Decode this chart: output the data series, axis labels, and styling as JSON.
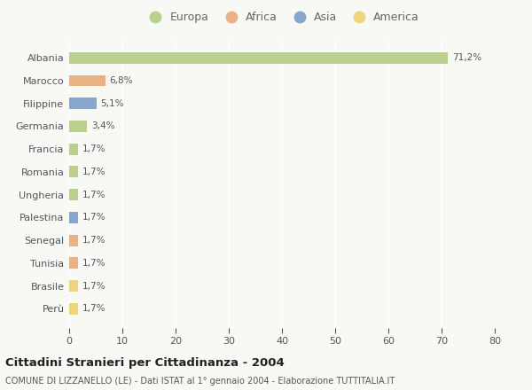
{
  "countries": [
    "Albania",
    "Marocco",
    "Filippine",
    "Germania",
    "Francia",
    "Romania",
    "Ungheria",
    "Palestina",
    "Senegal",
    "Tunisia",
    "Brasile",
    "Perù"
  ],
  "values": [
    71.2,
    6.8,
    5.1,
    3.4,
    1.7,
    1.7,
    1.7,
    1.7,
    1.7,
    1.7,
    1.7,
    1.7
  ],
  "labels": [
    "71,2%",
    "6,8%",
    "5,1%",
    "3,4%",
    "1,7%",
    "1,7%",
    "1,7%",
    "1,7%",
    "1,7%",
    "1,7%",
    "1,7%",
    "1,7%"
  ],
  "colors": [
    "#b5cc82",
    "#e8aa78",
    "#7b9ec9",
    "#b5cc82",
    "#b5cc82",
    "#b5cc82",
    "#b5cc82",
    "#7b9ec9",
    "#e8aa78",
    "#e8aa78",
    "#f0d070",
    "#f0d070"
  ],
  "legend_labels": [
    "Europa",
    "Africa",
    "Asia",
    "America"
  ],
  "legend_colors": [
    "#b5cc82",
    "#e8aa78",
    "#7b9ec9",
    "#f0d070"
  ],
  "xlim": [
    0,
    80
  ],
  "xticks": [
    0,
    10,
    20,
    30,
    40,
    50,
    60,
    70,
    80
  ],
  "title": "Cittadini Stranieri per Cittadinanza - 2004",
  "subtitle": "COMUNE DI LIZZANELLO (LE) - Dati ISTAT al 1° gennaio 2004 - Elaborazione TUTTITALIA.IT",
  "background_color": "#f8f8f5",
  "grid_color": "#ffffff",
  "bar_height": 0.5
}
